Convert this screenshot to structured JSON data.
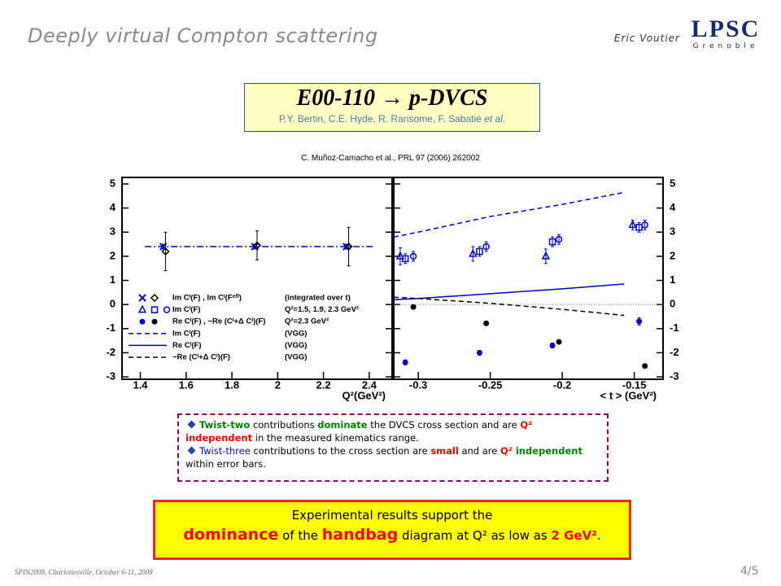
{
  "header": {
    "title": "Deeply virtual Compton scattering",
    "author": "Eric Voutier",
    "logo": {
      "name": "LPSC",
      "city": "Grenoble"
    }
  },
  "experiment": {
    "title": "E00-110 → p-DVCS",
    "authors": "P.Y. Bertin, C.E. Hyde, R. Ransome, F. Sabatié",
    "authors_suffix": "et al."
  },
  "reference": "C. Muñoz-Camacho et al., PRL 97 (2006) 262002",
  "chart_data": [
    {
      "type": "scatter",
      "xlabel": "Q²(GeV²)",
      "xlim": [
        1.32,
        2.5
      ],
      "ylim": [
        -3.1,
        5.27
      ],
      "xticks": [
        1.4,
        1.6,
        1.8,
        2,
        2.2,
        2.4
      ],
      "yticks": [
        -3,
        -2,
        -1,
        0,
        1,
        2,
        3,
        4,
        5
      ],
      "ytick_side": "left",
      "series": [
        {
          "marker": "cross",
          "color": "#0000cc",
          "x": [
            1.5,
            1.9,
            2.3
          ],
          "values": [
            2.4,
            2.4,
            2.4
          ],
          "errors": [
            0.1,
            0.1,
            0.1
          ]
        },
        {
          "marker": "diamond",
          "color": "#000000",
          "x": [
            1.51,
            1.91,
            2.31
          ],
          "values": [
            2.2,
            2.45,
            2.4
          ],
          "errors": [
            0.8,
            0.6,
            0.8
          ]
        },
        {
          "line": "dashdot",
          "color": "#0000cc",
          "x": [
            1.42,
            2.42
          ],
          "values": [
            2.4,
            2.4
          ]
        }
      ],
      "legend": [
        {
          "label": "Im Cᴵ(F) , Im Cᴵ(Fᵉᶠᶠ)",
          "note": "(integrated over t)",
          "markers": [
            {
              "shape": "cross",
              "color": "#0000cc"
            },
            {
              "shape": "diamond",
              "color": "#000000"
            }
          ]
        },
        {
          "label": "Im Cᴵ(F)",
          "note": "Q²=1.5, 1.9, 2.3 GeV²",
          "markers": [
            {
              "shape": "triangle",
              "color": "#0000cc"
            },
            {
              "shape": "square",
              "color": "#0000cc"
            },
            {
              "shape": "circle",
              "color": "#0000cc"
            }
          ]
        },
        {
          "label": "Re Cᴵ(F) , −Re (Cᴵ+Δ Cᴵ)(F)",
          "note": "Q²=2.3 GeV²",
          "markers": [
            {
              "shape": "dot",
              "color": "#0000cc"
            },
            {
              "shape": "dot",
              "color": "#000000"
            }
          ]
        },
        {
          "label": "Im Cᴵ(F)",
          "note": "(VGG)",
          "markers": [
            {
              "line": "dashed",
              "color": "#0000cc"
            }
          ]
        },
        {
          "label": "Re Cᴵ(F)",
          "note": "(VGG)",
          "markers": [
            {
              "line": "solid",
              "color": "#0000cc"
            }
          ]
        },
        {
          "label": "−Re (Cᴵ+Δ Cᴵ)(F)",
          "note": "(VGG)",
          "markers": [
            {
              "line": "dashed",
              "color": "#000000"
            }
          ]
        }
      ]
    },
    {
      "type": "scatter",
      "xlabel": "< t > (GeV²)",
      "xlim": [
        -0.317,
        -0.13
      ],
      "ylim": [
        -3.1,
        5.27
      ],
      "xticks": [
        -0.3,
        -0.25,
        -0.2,
        -0.15
      ],
      "yticks": [
        -3,
        -2,
        -1,
        0,
        1,
        2,
        3,
        4,
        5
      ],
      "ytick_side": "right",
      "reference_line": 0,
      "series": [
        {
          "marker": "triangle",
          "color": "#0000cc",
          "x": [
            -0.3125,
            -0.262,
            -0.2114,
            -0.1511
          ],
          "values": [
            2.0,
            2.1,
            2.0,
            3.3
          ],
          "errors": [
            0.35,
            0.3,
            0.3,
            0.2
          ]
        },
        {
          "marker": "square",
          "color": "#0000cc",
          "x": [
            -0.309,
            -0.2574,
            -0.2068,
            -0.1466
          ],
          "values": [
            1.9,
            2.2,
            2.6,
            3.2
          ],
          "errors": [
            0.2,
            0.2,
            0.2,
            0.2
          ]
        },
        {
          "marker": "circle",
          "color": "#0000cc",
          "x": [
            -0.3034,
            -0.2528,
            -0.2023,
            -0.1426
          ],
          "values": [
            2.0,
            2.4,
            2.7,
            3.3
          ],
          "errors": [
            0.2,
            0.2,
            0.2,
            0.2
          ]
        },
        {
          "marker": "dot",
          "color": "#0000cc",
          "x": [
            -0.309,
            -0.2574,
            -0.2068,
            -0.1466
          ],
          "values": [
            -2.4,
            -2.0,
            -1.7,
            -0.7
          ],
          "errors": [
            0.1,
            0.1,
            0.1,
            0.15
          ]
        },
        {
          "marker": "dot",
          "color": "#000000",
          "x": [
            -0.3034,
            -0.2528,
            -0.2023,
            -0.1426
          ],
          "values": [
            -0.1,
            -0.78,
            -1.55,
            -2.55
          ]
        },
        {
          "line": "dashed",
          "color": "#0000cc",
          "x": [
            -0.317,
            -0.3,
            -0.25,
            -0.2,
            -0.157
          ],
          "values": [
            2.8,
            3.0,
            3.65,
            4.15,
            4.65
          ]
        },
        {
          "line": "solid",
          "color": "#0000cc",
          "x": [
            -0.317,
            -0.3,
            -0.25,
            -0.2,
            -0.157
          ],
          "values": [
            0.2,
            0.25,
            0.45,
            0.65,
            0.85
          ]
        },
        {
          "line": "dashed",
          "color": "#000000",
          "x": [
            -0.317,
            -0.3,
            -0.25,
            -0.2,
            -0.157
          ],
          "values": [
            0.3,
            0.25,
            0.05,
            -0.2,
            -0.45
          ]
        }
      ]
    }
  ],
  "summary": {
    "bullets": [
      {
        "runs": [
          {
            "text": "Twist-two",
            "color": "#008000",
            "bold": true
          },
          {
            "text": " contributions "
          },
          {
            "text": "dominate",
            "color": "#008000",
            "bold": true
          },
          {
            "text": " the DVCS cross section and are "
          },
          {
            "text": "Q² independent",
            "color": "#ff0000",
            "bold": true
          },
          {
            "text": " in the measured kinematics range."
          }
        ]
      },
      {
        "runs": [
          {
            "text": "Twist-three",
            "color": "#0000ff"
          },
          {
            "text": " contributions to the cross section are "
          },
          {
            "text": "small",
            "color": "#ff0000",
            "bold": true
          },
          {
            "text": " and are "
          },
          {
            "text": "Q²",
            "color": "#ff0000",
            "bold": true
          },
          {
            "text": " independent",
            "color": "#008000",
            "bold": true
          },
          {
            "text": " within error bars."
          }
        ]
      }
    ]
  },
  "conclusion": {
    "line1": "Experimental results support the",
    "runs": [
      {
        "text": "dominance",
        "color": "#ff0000",
        "bold": true,
        "large": true
      },
      {
        "text": " of the "
      },
      {
        "text": "handbag",
        "color": "#ff0000",
        "bold": true,
        "large": true
      },
      {
        "text": " diagram at Q² as low as "
      },
      {
        "text": "2 GeV²",
        "color": "#ff0000",
        "bold": true
      },
      {
        "text": "."
      }
    ]
  },
  "footer": {
    "event": "SPIN2008, Charlottesville, October 6-11, 2008",
    "page": "4/5"
  }
}
